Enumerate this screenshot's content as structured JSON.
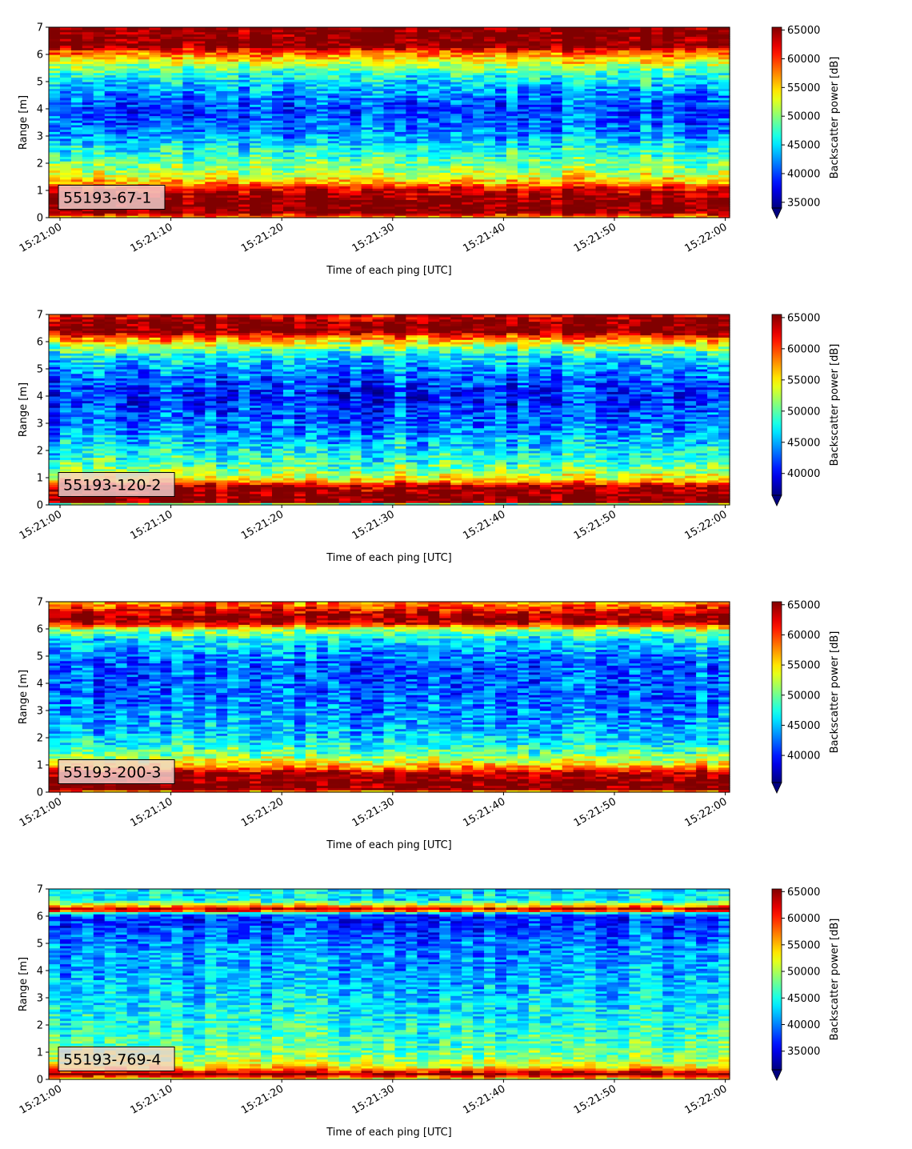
{
  "chart_data": [
    {
      "type": "heatmap",
      "panel_label": "55193-67-1",
      "xlabel": "Time of each ping [UTC]",
      "ylabel": "Range [m]",
      "x_ticks": [
        "15:21:00",
        "15:21:10",
        "15:21:20",
        "15:21:30",
        "15:21:40",
        "15:21:50",
        "15:22:00"
      ],
      "x_range": [
        "15:21:00",
        "15:22:00"
      ],
      "y_ticks": [
        0,
        1,
        2,
        3,
        4,
        5,
        6,
        7
      ],
      "ylim": [
        0,
        7
      ],
      "colorbar_label": "Backscatter power [dB]",
      "colorbar_ticks": [
        35000,
        40000,
        45000,
        50000,
        55000,
        60000,
        65000
      ],
      "clim": [
        34000,
        65500
      ],
      "colormap": "jet",
      "profile": {
        "range_m": [
          0,
          0.2,
          0.5,
          0.8,
          1.1,
          1.3,
          1.6,
          1.9,
          2.2,
          2.6,
          3.0,
          3.5,
          4.0,
          4.5,
          5.0,
          5.4,
          5.8,
          6.1,
          6.3,
          6.5,
          7.0
        ],
        "power": [
          55000,
          66000,
          66000,
          65000,
          62000,
          56000,
          52000,
          50000,
          48000,
          46000,
          43000,
          41000,
          40000,
          42000,
          45000,
          48000,
          54000,
          59000,
          66000,
          66000,
          66000
        ]
      }
    },
    {
      "type": "heatmap",
      "panel_label": "55193-120-2",
      "xlabel": "Time of each ping [UTC]",
      "ylabel": "Range [m]",
      "x_ticks": [
        "15:21:00",
        "15:21:10",
        "15:21:20",
        "15:21:30",
        "15:21:40",
        "15:21:50",
        "15:22:00"
      ],
      "x_range": [
        "15:21:00",
        "15:22:00"
      ],
      "y_ticks": [
        0,
        1,
        2,
        3,
        4,
        5,
        6,
        7
      ],
      "ylim": [
        0,
        7
      ],
      "colorbar_label": "Backscatter power [dB]",
      "colorbar_ticks": [
        40000,
        45000,
        50000,
        55000,
        60000,
        65000
      ],
      "clim": [
        36500,
        65500
      ],
      "colormap": "jet",
      "profile": {
        "range_m": [
          0,
          0.1,
          0.3,
          0.7,
          0.85,
          1.0,
          1.3,
          1.6,
          2.0,
          2.5,
          3.0,
          3.5,
          4.0,
          4.5,
          5.0,
          5.5,
          5.9,
          6.2,
          6.4,
          6.7,
          7.0
        ],
        "power": [
          40000,
          66000,
          66000,
          64000,
          58000,
          54000,
          51000,
          49000,
          47000,
          45000,
          43000,
          42000,
          41000,
          42000,
          44000,
          47000,
          53000,
          60000,
          66000,
          66000,
          62000
        ]
      }
    },
    {
      "type": "heatmap",
      "panel_label": "55193-200-3",
      "xlabel": "Time of each ping [UTC]",
      "ylabel": "Range [m]",
      "x_ticks": [
        "15:21:00",
        "15:21:10",
        "15:21:20",
        "15:21:30",
        "15:21:40",
        "15:21:50",
        "15:22:00"
      ],
      "x_range": [
        "15:21:00",
        "15:22:00"
      ],
      "y_ticks": [
        0,
        1,
        2,
        3,
        4,
        5,
        6,
        7
      ],
      "ylim": [
        0,
        7
      ],
      "colorbar_label": "Backscatter power [dB]",
      "colorbar_ticks": [
        40000,
        45000,
        50000,
        55000,
        60000,
        65000
      ],
      "clim": [
        35500,
        65500
      ],
      "colormap": "jet",
      "profile": {
        "range_m": [
          0,
          0.1,
          0.3,
          0.7,
          0.9,
          1.1,
          1.4,
          1.8,
          2.2,
          2.7,
          3.2,
          3.7,
          4.2,
          4.7,
          5.2,
          5.6,
          6.0,
          6.2,
          6.4,
          6.7,
          7.0
        ],
        "power": [
          52000,
          66000,
          66000,
          64000,
          58000,
          54000,
          50000,
          47000,
          45000,
          44000,
          43000,
          42000,
          42000,
          42000,
          44000,
          46000,
          52000,
          62000,
          66000,
          62000,
          57000
        ]
      }
    },
    {
      "type": "heatmap",
      "panel_label": "55193-769-4",
      "xlabel": "Time of each ping [UTC]",
      "ylabel": "Range [m]",
      "x_ticks": [
        "15:21:00",
        "15:21:10",
        "15:21:20",
        "15:21:30",
        "15:21:40",
        "15:21:50",
        "15:22:00"
      ],
      "x_range": [
        "15:21:00",
        "15:22:00"
      ],
      "y_ticks": [
        0,
        1,
        2,
        3,
        4,
        5,
        6,
        7
      ],
      "ylim": [
        0,
        7
      ],
      "colorbar_label": "Backscatter power [dB]",
      "colorbar_ticks": [
        35000,
        40000,
        45000,
        50000,
        55000,
        60000,
        65000
      ],
      "clim": [
        31500,
        65500
      ],
      "colormap": "jet",
      "profile": {
        "range_m": [
          0,
          0.1,
          0.2,
          0.35,
          0.5,
          0.8,
          1.2,
          1.6,
          2.0,
          2.5,
          3.0,
          3.5,
          4.0,
          4.5,
          5.0,
          5.5,
          5.9,
          6.1,
          6.25,
          6.4,
          6.6,
          7.0
        ],
        "power": [
          50000,
          58000,
          66000,
          58000,
          52000,
          49000,
          47000,
          46000,
          45000,
          44000,
          43000,
          42000,
          41000,
          41000,
          40000,
          38000,
          37000,
          40000,
          66000,
          54000,
          44000,
          43000
        ]
      }
    }
  ]
}
